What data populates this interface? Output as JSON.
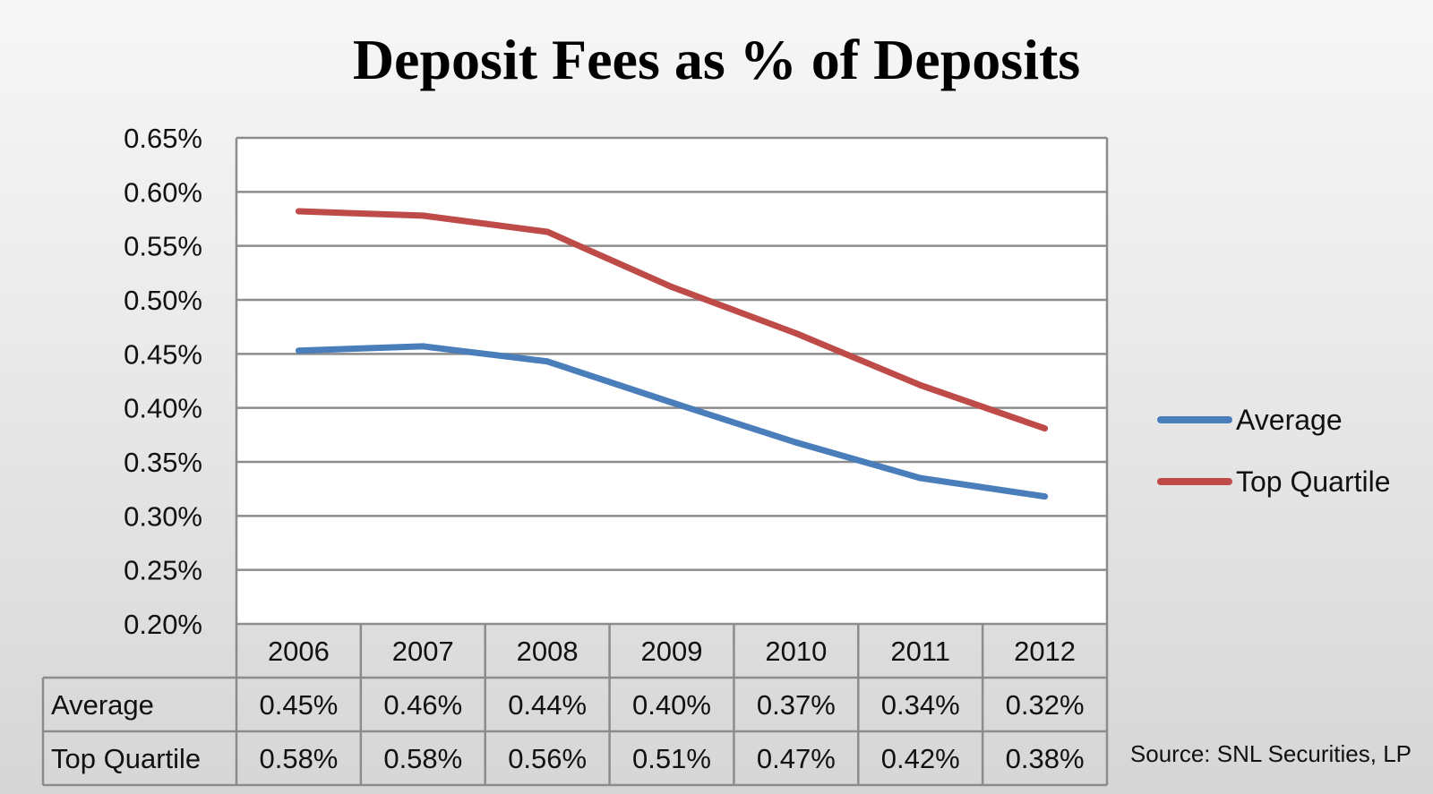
{
  "chart_data": {
    "type": "line",
    "title": "Deposit Fees as % of Deposits",
    "categories": [
      "2006",
      "2007",
      "2008",
      "2009",
      "2010",
      "2011",
      "2012"
    ],
    "series": [
      {
        "name": "Average",
        "color": "#4a7ebb",
        "values": [
          0.453,
          0.457,
          0.443,
          0.405,
          0.368,
          0.335,
          0.318
        ],
        "labels": [
          "0.45%",
          "0.46%",
          "0.44%",
          "0.40%",
          "0.37%",
          "0.34%",
          "0.32%"
        ]
      },
      {
        "name": "Top Quartile",
        "color": "#be4b48",
        "values": [
          0.582,
          0.578,
          0.563,
          0.512,
          0.469,
          0.421,
          0.381
        ],
        "labels": [
          "0.58%",
          "0.58%",
          "0.56%",
          "0.51%",
          "0.47%",
          "0.42%",
          "0.38%"
        ]
      }
    ],
    "ylim": [
      0.2,
      0.65
    ],
    "yticks": [
      "0.65%",
      "0.60%",
      "0.55%",
      "0.50%",
      "0.45%",
      "0.40%",
      "0.35%",
      "0.30%",
      "0.25%",
      "0.20%"
    ],
    "grid": true,
    "legend_position": "right",
    "xlabel": "",
    "ylabel": ""
  },
  "source_note": "Source: SNL Securities, LP"
}
